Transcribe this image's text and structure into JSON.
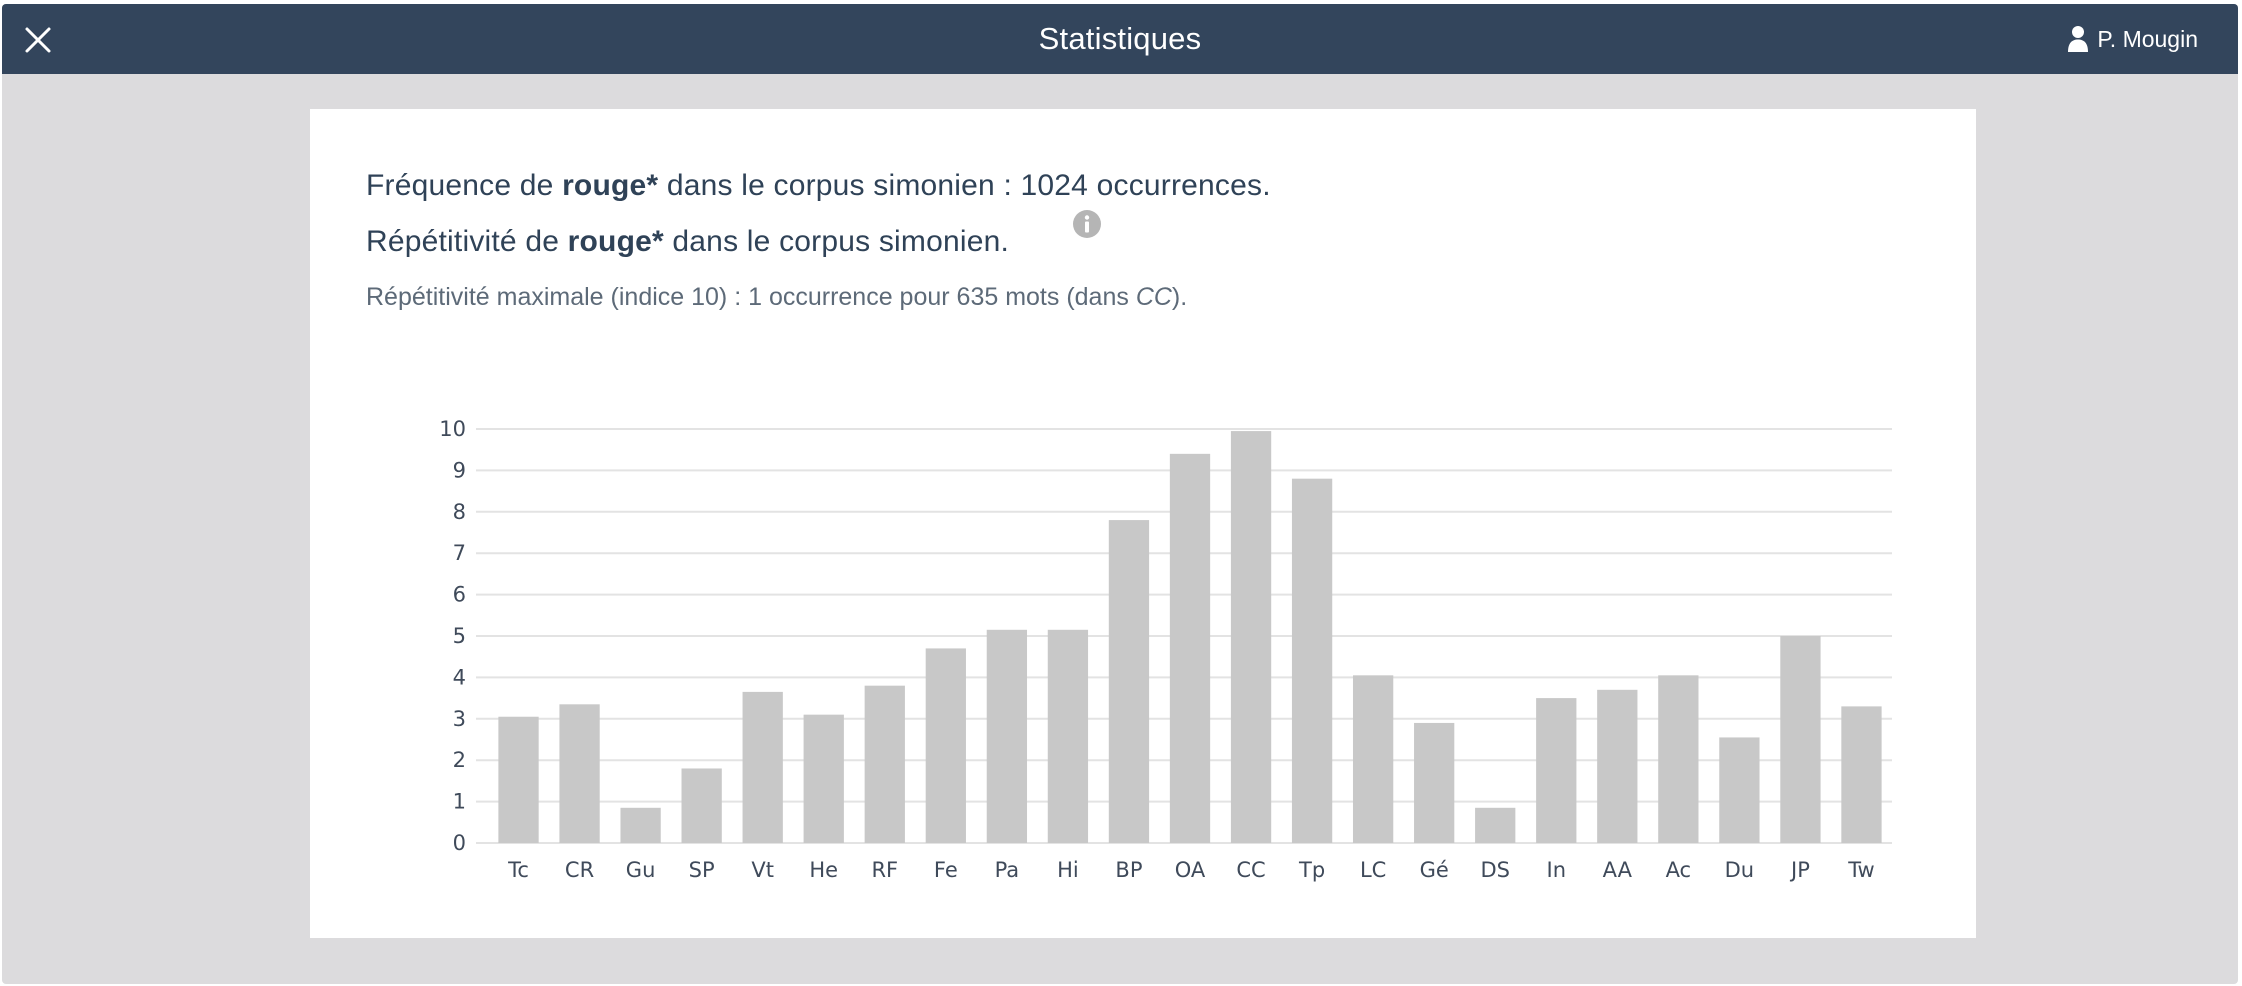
{
  "header": {
    "title": "Statistiques",
    "user_name": "P. Mougin",
    "colors": {
      "bar": "#33455c",
      "text": "#ffffff"
    },
    "icons": {
      "close": "close-icon",
      "user": "user-icon"
    }
  },
  "stats": {
    "freq_prefix": "Fréquence de ",
    "freq_term": "rouge*",
    "freq_suffix": " dans le corpus simonien : 1024 occurrences.",
    "rep_prefix": "Répétitivité de ",
    "rep_term": "rouge*",
    "rep_suffix": " dans le corpus simonien.",
    "max_prefix": "Répétitivité maximale (indice 10) : 1 occurrence pour 635 mots (dans ",
    "max_work": "CC",
    "max_suffix": ").",
    "info_icon": "info-icon"
  },
  "chart_data": {
    "type": "bar",
    "categories": [
      "Tc",
      "CR",
      "Gu",
      "SP",
      "Vt",
      "He",
      "RF",
      "Fe",
      "Pa",
      "Hi",
      "BP",
      "OA",
      "CC",
      "Tp",
      "LC",
      "Gé",
      "DS",
      "In",
      "AA",
      "Ac",
      "Du",
      "JP",
      "Tw"
    ],
    "values": [
      3.05,
      3.35,
      0.85,
      1.8,
      3.65,
      3.1,
      3.8,
      4.7,
      5.15,
      5.15,
      7.8,
      9.4,
      9.95,
      8.8,
      4.05,
      2.9,
      0.85,
      3.5,
      3.7,
      4.05,
      2.55,
      5.0,
      3.3
    ],
    "yticks": [
      0,
      1,
      2,
      3,
      4,
      5,
      6,
      7,
      8,
      9,
      10
    ],
    "ylim": [
      0,
      10
    ],
    "grid": true,
    "bar_color": "#c8c8c8",
    "grid_color": "#e3e3e3"
  }
}
